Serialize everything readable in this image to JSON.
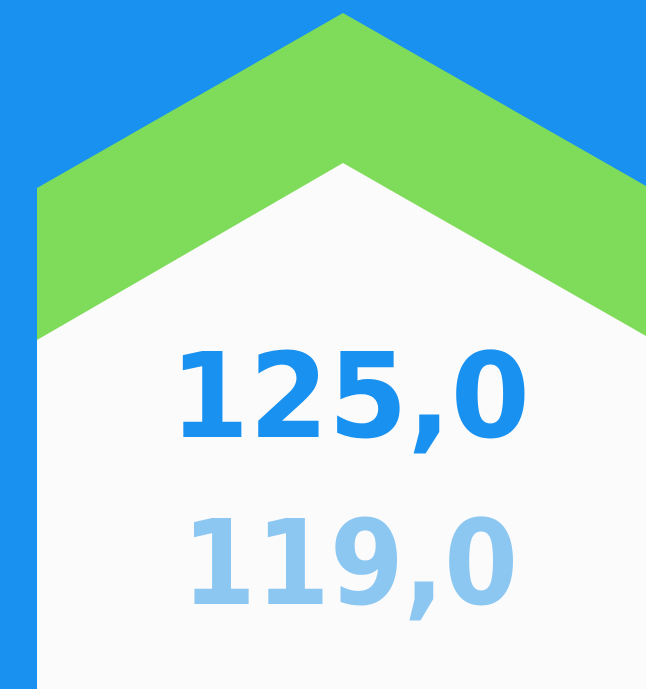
{
  "values": {
    "primary": "125,0",
    "secondary": "119,0"
  }
}
